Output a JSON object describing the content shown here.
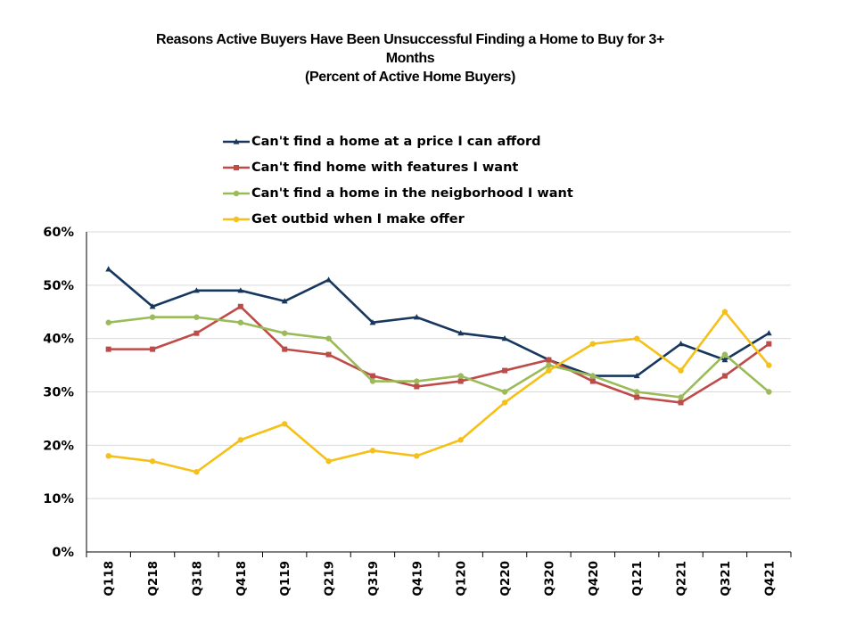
{
  "chart_data": {
    "type": "line",
    "title_lines": [
      "Reasons Active Buyers Have Been Unsuccessful Finding a Home to Buy for 3+",
      "Months",
      "(Percent of Active Home Buyers)"
    ],
    "categories": [
      "Q118",
      "Q218",
      "Q318",
      "Q418",
      "Q119",
      "Q219",
      "Q319",
      "Q419",
      "Q120",
      "Q220",
      "Q320",
      "Q420",
      "Q121",
      "Q221",
      "Q321",
      "Q421"
    ],
    "y_ticks": [
      "0%",
      "10%",
      "20%",
      "30%",
      "40%",
      "50%",
      "60%"
    ],
    "ylim": [
      0,
      60
    ],
    "grid": "horizontal",
    "legend_position": "top",
    "series": [
      {
        "name": "Can't find a home at a price I can afford",
        "color": "#17375e",
        "marker": "triangle",
        "values": [
          53,
          46,
          49,
          49,
          47,
          51,
          43,
          44,
          41,
          40,
          36,
          33,
          33,
          39,
          36,
          41
        ]
      },
      {
        "name": "Can't find home with features I want",
        "color": "#be4b48",
        "marker": "square",
        "values": [
          38,
          38,
          41,
          46,
          38,
          37,
          33,
          31,
          32,
          34,
          36,
          32,
          29,
          28,
          33,
          39
        ]
      },
      {
        "name": "Can't find a home in the neigborhood I want",
        "color": "#9bbb59",
        "marker": "circle",
        "values": [
          43,
          44,
          44,
          43,
          41,
          40,
          32,
          32,
          33,
          30,
          35,
          33,
          30,
          29,
          37,
          30
        ]
      },
      {
        "name": "Get outbid when I make offer",
        "color": "#f5c018",
        "marker": "circle",
        "values": [
          18,
          17,
          15,
          21,
          24,
          17,
          19,
          18,
          21,
          28,
          34,
          39,
          40,
          34,
          45,
          35
        ]
      }
    ]
  }
}
